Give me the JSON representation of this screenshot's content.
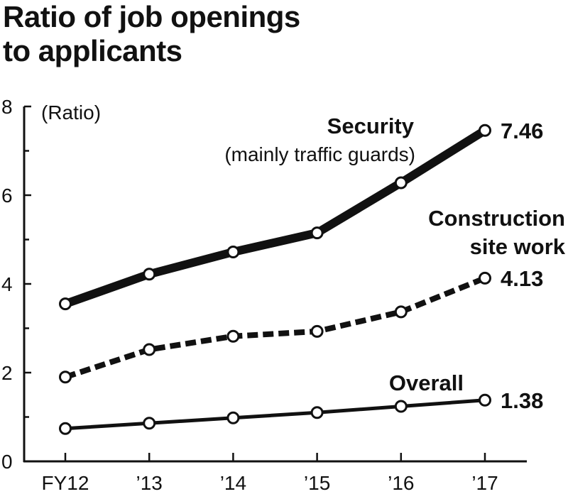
{
  "chart_data": {
    "type": "line",
    "title_lines": [
      "Ratio of job openings",
      "to applicants"
    ],
    "ylabel": "(Ratio)",
    "ylim": [
      0,
      8
    ],
    "yticks": [
      0,
      2,
      4,
      6,
      8
    ],
    "grid": false,
    "categories": [
      "FY12",
      "’13",
      "’14",
      "’15",
      "’16",
      "’17"
    ],
    "series": [
      {
        "name": "Security",
        "subtitle": "(mainly traffic guards)",
        "line_style": "thick-solid",
        "values": [
          3.55,
          4.22,
          4.72,
          5.15,
          6.28,
          7.46
        ],
        "end_label": "7.46"
      },
      {
        "name_lines": [
          "Construction",
          "site work"
        ],
        "line_style": "dashed",
        "values": [
          1.9,
          2.52,
          2.82,
          2.93,
          3.37,
          4.13
        ],
        "end_label": "4.13"
      },
      {
        "name": "Overall",
        "line_style": "solid",
        "values": [
          0.74,
          0.86,
          0.98,
          1.1,
          1.24,
          1.38
        ],
        "end_label": "1.38"
      }
    ]
  }
}
